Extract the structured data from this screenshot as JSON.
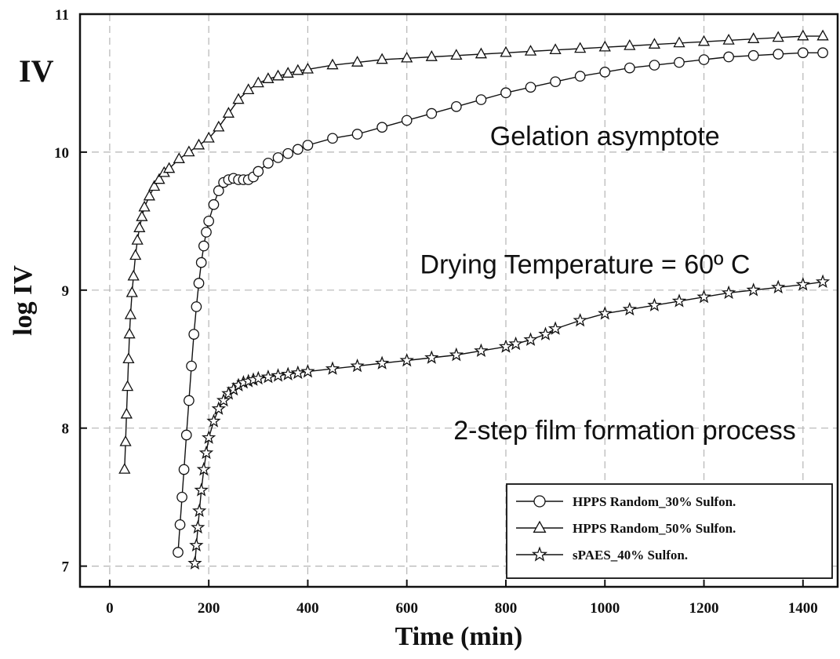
{
  "chart_data": {
    "type": "scatter",
    "title": "",
    "panel_label": "IV",
    "xlabel": "Time (min)",
    "ylabel": "log IV",
    "xlim": [
      -60,
      1470
    ],
    "ylim": [
      6.85,
      11.0
    ],
    "xticks": [
      0,
      200,
      400,
      600,
      800,
      1000,
      1200,
      1400
    ],
    "yticks": [
      7,
      8,
      9,
      10,
      11
    ],
    "grid": true,
    "legend_position": "bottom-right",
    "annotations": [
      {
        "text": "Gelation asymptote",
        "x": 1000,
        "y": 10.05
      },
      {
        "text": "Drying Temperature = 60º C",
        "x": 960,
        "y": 9.12
      },
      {
        "text": "2-step film formation process",
        "x": 1040,
        "y": 7.92
      }
    ],
    "series": [
      {
        "name": "HPPS Random_30% Sulfon.",
        "marker": "circle",
        "x": [
          138,
          142,
          146,
          150,
          155,
          160,
          165,
          170,
          175,
          180,
          185,
          190,
          195,
          200,
          210,
          220,
          230,
          240,
          250,
          260,
          270,
          280,
          290,
          300,
          320,
          340,
          360,
          380,
          400,
          450,
          500,
          550,
          600,
          650,
          700,
          750,
          800,
          850,
          900,
          950,
          1000,
          1050,
          1100,
          1150,
          1200,
          1250,
          1300,
          1350,
          1400,
          1440
        ],
        "y": [
          7.1,
          7.3,
          7.5,
          7.7,
          7.95,
          8.2,
          8.45,
          8.68,
          8.88,
          9.05,
          9.2,
          9.32,
          9.42,
          9.5,
          9.62,
          9.72,
          9.78,
          9.8,
          9.81,
          9.8,
          9.8,
          9.8,
          9.82,
          9.86,
          9.92,
          9.96,
          9.99,
          10.02,
          10.05,
          10.1,
          10.13,
          10.18,
          10.23,
          10.28,
          10.33,
          10.38,
          10.43,
          10.47,
          10.51,
          10.55,
          10.58,
          10.61,
          10.63,
          10.65,
          10.67,
          10.69,
          10.7,
          10.71,
          10.72,
          10.72
        ]
      },
      {
        "name": "HPPS Random_50% Sulfon.",
        "marker": "triangle",
        "x": [
          30,
          32,
          34,
          36,
          38,
          40,
          42,
          45,
          48,
          52,
          56,
          60,
          65,
          70,
          80,
          90,
          100,
          110,
          120,
          140,
          160,
          180,
          200,
          220,
          240,
          260,
          280,
          300,
          320,
          340,
          360,
          380,
          400,
          450,
          500,
          550,
          600,
          650,
          700,
          750,
          800,
          850,
          900,
          950,
          1000,
          1050,
          1100,
          1150,
          1200,
          1250,
          1300,
          1350,
          1400,
          1440
        ],
        "y": [
          7.7,
          7.9,
          8.1,
          8.3,
          8.5,
          8.68,
          8.82,
          8.98,
          9.1,
          9.25,
          9.36,
          9.45,
          9.53,
          9.6,
          9.68,
          9.75,
          9.8,
          9.85,
          9.88,
          9.95,
          10.0,
          10.05,
          10.1,
          10.18,
          10.28,
          10.38,
          10.45,
          10.5,
          10.53,
          10.55,
          10.57,
          10.59,
          10.6,
          10.63,
          10.65,
          10.67,
          10.68,
          10.69,
          10.7,
          10.71,
          10.72,
          10.73,
          10.74,
          10.75,
          10.76,
          10.77,
          10.78,
          10.79,
          10.8,
          10.81,
          10.82,
          10.83,
          10.84,
          10.84
        ]
      },
      {
        "name": "sPAES_40% Sulfon.",
        "marker": "star",
        "x": [
          172,
          175,
          178,
          181,
          185,
          190,
          195,
          200,
          210,
          220,
          230,
          240,
          250,
          260,
          270,
          280,
          290,
          300,
          320,
          340,
          360,
          380,
          400,
          450,
          500,
          550,
          600,
          650,
          700,
          750,
          800,
          820,
          850,
          880,
          900,
          950,
          1000,
          1050,
          1100,
          1150,
          1200,
          1250,
          1300,
          1350,
          1400,
          1440
        ],
        "y": [
          7.02,
          7.15,
          7.28,
          7.4,
          7.55,
          7.7,
          7.82,
          7.93,
          8.05,
          8.14,
          8.2,
          8.25,
          8.28,
          8.31,
          8.33,
          8.34,
          8.35,
          8.36,
          8.37,
          8.38,
          8.39,
          8.4,
          8.41,
          8.43,
          8.45,
          8.47,
          8.49,
          8.51,
          8.53,
          8.56,
          8.59,
          8.61,
          8.64,
          8.68,
          8.72,
          8.78,
          8.83,
          8.86,
          8.89,
          8.92,
          8.95,
          8.98,
          9.0,
          9.02,
          9.04,
          9.06
        ]
      }
    ]
  }
}
